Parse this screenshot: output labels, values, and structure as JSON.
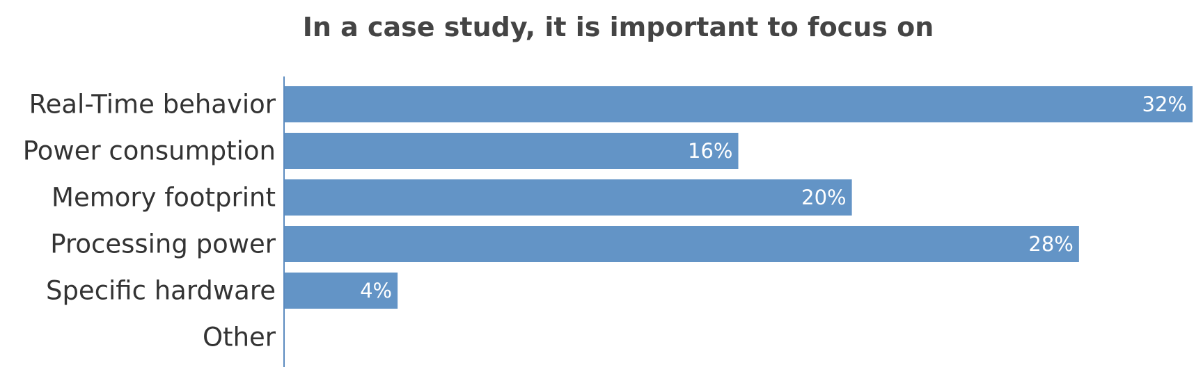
{
  "chart_data": {
    "type": "bar",
    "orientation": "horizontal",
    "title": "In a case study, it is important to focus on",
    "xlabel": "",
    "ylabel": "",
    "categories": [
      "Real-Time behavior",
      "Power consumption",
      "Memory footprint",
      "Processing power",
      "Specific hardware",
      "Other"
    ],
    "values": [
      32,
      16,
      20,
      28,
      4,
      0
    ],
    "value_labels": [
      "32%",
      "16%",
      "20%",
      "28%",
      "4%",
      ""
    ],
    "unit": "%",
    "xlim": [
      0,
      32
    ],
    "grid": false,
    "legend": "none",
    "colors": {
      "bar": "#6394c6",
      "axis": "#5b8bbf",
      "title": "#444444",
      "label": "#333333",
      "value_label": "#ffffff"
    }
  }
}
